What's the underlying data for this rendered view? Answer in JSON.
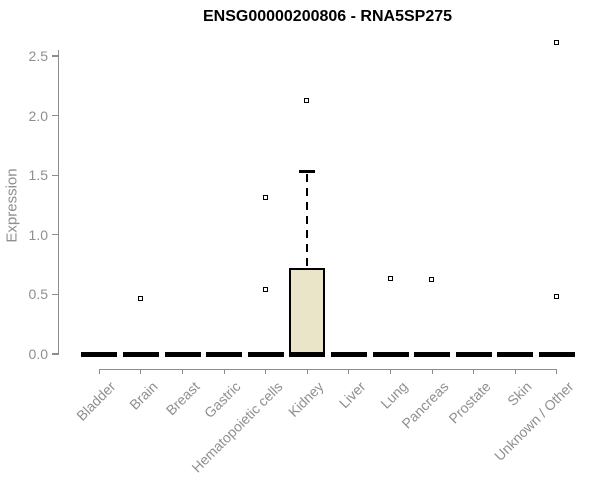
{
  "chart_data": {
    "type": "boxplot",
    "title": "ENSG00000200806 - RNA5SP275",
    "ylabel": "Expression",
    "xlabel": "",
    "ylim": [
      0,
      2.5
    ],
    "yticks": [
      "0.0",
      "0.5",
      "1.0",
      "1.5",
      "2.0",
      "2.5"
    ],
    "grid": false,
    "legend": false,
    "categories": [
      "Bladder",
      "Brain",
      "Breast",
      "Gastric",
      "Hematopoietic cells",
      "Kidney",
      "Liver",
      "Lung",
      "Pancreas",
      "Prostate",
      "Skin",
      "Unknown / Other"
    ],
    "boxes": [
      {
        "category": "Bladder",
        "whisker_low": 0,
        "q1": 0,
        "median": 0,
        "q3": 0,
        "whisker_high": 0,
        "outliers": []
      },
      {
        "category": "Brain",
        "whisker_low": 0,
        "q1": 0,
        "median": 0,
        "q3": 0,
        "whisker_high": 0,
        "outliers": [
          0.46
        ]
      },
      {
        "category": "Breast",
        "whisker_low": 0,
        "q1": 0,
        "median": 0,
        "q3": 0,
        "whisker_high": 0,
        "outliers": []
      },
      {
        "category": "Gastric",
        "whisker_low": 0,
        "q1": 0,
        "median": 0,
        "q3": 0,
        "whisker_high": 0,
        "outliers": []
      },
      {
        "category": "Hematopoietic cells",
        "whisker_low": 0,
        "q1": 0,
        "median": 0,
        "q3": 0,
        "whisker_high": 0,
        "outliers": [
          0.54,
          1.31
        ]
      },
      {
        "category": "Kidney",
        "whisker_low": 0,
        "q1": 0,
        "median": 0,
        "q3": 0.72,
        "whisker_high": 1.53,
        "outliers": [
          2.12
        ]
      },
      {
        "category": "Liver",
        "whisker_low": 0,
        "q1": 0,
        "median": 0,
        "q3": 0,
        "whisker_high": 0,
        "outliers": []
      },
      {
        "category": "Lung",
        "whisker_low": 0,
        "q1": 0,
        "median": 0,
        "q3": 0,
        "whisker_high": 0,
        "outliers": [
          0.63
        ]
      },
      {
        "category": "Pancreas",
        "whisker_low": 0,
        "q1": 0,
        "median": 0,
        "q3": 0,
        "whisker_high": 0,
        "outliers": [
          0.62
        ]
      },
      {
        "category": "Prostate",
        "whisker_low": 0,
        "q1": 0,
        "median": 0,
        "q3": 0,
        "whisker_high": 0,
        "outliers": []
      },
      {
        "category": "Skin",
        "whisker_low": 0,
        "q1": 0,
        "median": 0,
        "q3": 0,
        "whisker_high": 0,
        "outliers": []
      },
      {
        "category": "Unknown / Other",
        "whisker_low": 0,
        "q1": 0,
        "median": 0,
        "q3": 0,
        "whisker_high": 0,
        "outliers": [
          0.48,
          2.61
        ]
      }
    ],
    "colors": {
      "box_fill": "#eae4c8",
      "box_border": "#000000",
      "median": "#000000",
      "whisker": "#000000",
      "outlier_fill": "#ffffff",
      "outlier_border": "#000000",
      "axis_line": "#8c8c8c",
      "tick_text": "#8f8f8f",
      "title_text": "#000000",
      "background": "#ffffff"
    }
  }
}
